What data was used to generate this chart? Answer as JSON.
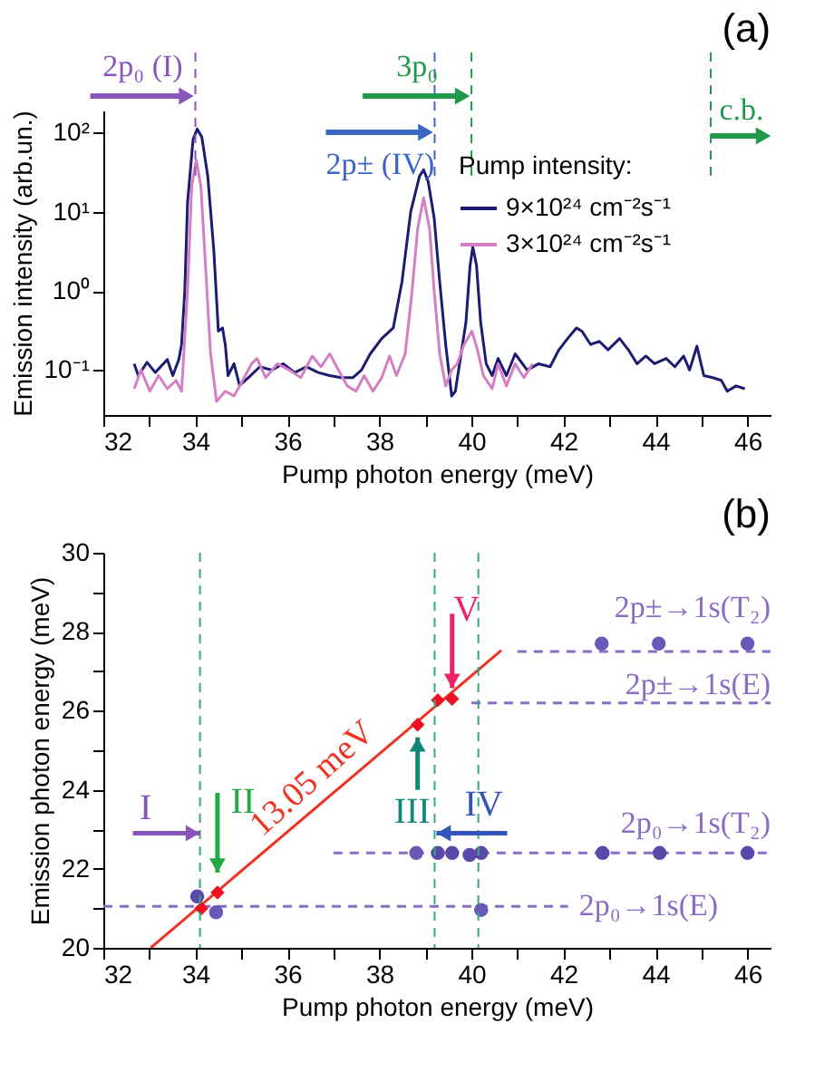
{
  "chart_data": [
    {
      "type": "line",
      "title": "(a)",
      "xlabel": "Pump photon energy (meV)",
      "ylabel": "Emission intensity (arb.un.)",
      "legend_title": "Pump intensity:",
      "legend": "right",
      "log": "y",
      "grid": false,
      "xlim": [
        32,
        46.5
      ],
      "xticks": [
        32,
        {
          "value": 33,
          "label": null
        },
        34,
        {
          "value": 35,
          "label": null
        },
        36,
        {
          "value": 37,
          "label": null
        },
        38,
        {
          "value": 39,
          "label": null
        },
        40,
        {
          "value": 41,
          "label": null
        },
        42,
        {
          "value": 43,
          "label": null
        },
        44,
        {
          "value": 45,
          "label": null
        },
        46
      ],
      "ylim": [
        0.027,
        190
      ],
      "yticks": [
        {
          "value": 0.1,
          "label": "10⁻¹"
        },
        {
          "value": 1,
          "label": "10⁰"
        },
        {
          "value": 10,
          "label": "10¹"
        },
        {
          "value": 100,
          "label": "10²"
        }
      ],
      "ref_lines": [
        {
          "axis": "x",
          "value": 34.0,
          "label": "2p₀ (I)",
          "color": "#8855bb",
          "line_style": "dashed"
        },
        {
          "axis": "x",
          "value": 39.2,
          "label": "2p± (IV)",
          "color": "#3a66c4",
          "line_style": "dashed"
        },
        {
          "axis": "x",
          "value": 40.0,
          "label": "3p₀",
          "color": "#22994a",
          "line_style": "dashed"
        },
        {
          "axis": "x",
          "value": 45.2,
          "label": "c.b.",
          "color": "#22994a",
          "line_style": "dashed"
        }
      ],
      "series": [
        {
          "name": "9×10²⁴ cm⁻²s⁻¹",
          "color": "#1c1c72",
          "x": [
            32.67,
            32.76,
            32.95,
            33.13,
            33.39,
            33.51,
            33.64,
            33.7,
            33.77,
            33.83,
            33.95,
            34.04,
            34.14,
            34.27,
            34.4,
            34.5,
            34.59,
            34.65,
            34.71,
            34.84,
            34.96,
            35.15,
            35.4,
            35.66,
            35.91,
            36.16,
            36.41,
            36.67,
            36.92,
            37.17,
            37.42,
            37.61,
            37.8,
            38.05,
            38.3,
            38.49,
            38.68,
            38.87,
            38.96,
            39.06,
            39.19,
            39.31,
            39.44,
            39.57,
            39.65,
            39.76,
            39.88,
            39.97,
            40.03,
            40.11,
            40.2,
            40.32,
            40.45,
            40.58,
            40.76,
            40.95,
            41.21,
            41.46,
            41.71,
            41.9,
            42.09,
            42.28,
            42.4,
            42.59,
            42.78,
            42.97,
            43.22,
            43.41,
            43.6,
            43.79,
            43.98,
            44.23,
            44.42,
            44.61,
            44.74,
            44.9,
            45.05,
            45.24,
            45.43,
            45.56,
            45.75,
            45.94
          ],
          "values": [
            0.12,
            0.085,
            0.125,
            0.093,
            0.136,
            0.085,
            0.136,
            0.21,
            1.0,
            13,
            82,
            111,
            88,
            28,
            3.3,
            0.31,
            0.34,
            0.21,
            0.085,
            0.12,
            0.064,
            0.08,
            0.11,
            0.1,
            0.12,
            0.093,
            0.11,
            0.093,
            0.085,
            0.08,
            0.08,
            0.1,
            0.16,
            0.25,
            0.34,
            1.3,
            10,
            28,
            34,
            24,
            8.3,
            1.3,
            0.21,
            0.047,
            0.054,
            0.14,
            0.4,
            2.1,
            3.6,
            2.1,
            0.4,
            0.12,
            0.085,
            0.14,
            0.085,
            0.16,
            0.1,
            0.12,
            0.11,
            0.18,
            0.25,
            0.34,
            0.31,
            0.21,
            0.23,
            0.18,
            0.25,
            0.18,
            0.12,
            0.15,
            0.12,
            0.14,
            0.11,
            0.15,
            0.1,
            0.2,
            0.085,
            0.08,
            0.074,
            0.054,
            0.063,
            0.058
          ]
        },
        {
          "name": "3×10²⁴ cm⁻²s⁻¹",
          "color": "#d47fc4",
          "x": [
            32.67,
            32.82,
            33.01,
            33.2,
            33.39,
            33.58,
            33.7,
            33.83,
            33.92,
            34.02,
            34.12,
            34.22,
            34.33,
            34.46,
            34.65,
            34.84,
            35.03,
            35.22,
            35.34,
            35.53,
            35.78,
            36.04,
            36.29,
            36.54,
            36.73,
            36.92,
            37.11,
            37.3,
            37.49,
            37.67,
            37.86,
            38.05,
            38.22,
            38.37,
            38.56,
            38.71,
            38.83,
            38.96,
            39.09,
            39.19,
            39.31,
            39.44,
            39.57,
            39.69,
            39.84,
            40.01,
            40.13,
            40.26,
            40.45,
            40.58,
            40.76,
            40.95,
            41.14,
            41.33
          ],
          "values": [
            0.058,
            0.1,
            0.054,
            0.085,
            0.058,
            0.074,
            0.054,
            1.0,
            21,
            45,
            21,
            2.1,
            0.16,
            0.04,
            0.054,
            0.047,
            0.074,
            0.12,
            0.14,
            0.08,
            0.12,
            0.1,
            0.08,
            0.15,
            0.11,
            0.16,
            0.1,
            0.063,
            0.054,
            0.085,
            0.054,
            0.08,
            0.15,
            0.085,
            0.16,
            1.0,
            6.1,
            15,
            6.1,
            1.0,
            0.16,
            0.063,
            0.1,
            0.12,
            0.21,
            0.31,
            0.18,
            0.085,
            0.058,
            0.12,
            0.063,
            0.12,
            0.08,
            0.12
          ]
        }
      ]
    },
    {
      "type": "scatter",
      "title": "(b)",
      "xlabel": "Pump photon energy (meV)",
      "ylabel": "Emission photon energy (meV)",
      "legend": false,
      "grid": false,
      "xlim": [
        32,
        46.5
      ],
      "xticks": [
        32,
        {
          "value": 33,
          "label": null
        },
        34,
        {
          "value": 35,
          "label": null
        },
        36,
        {
          "value": 37,
          "label": null
        },
        38,
        {
          "value": 39,
          "label": null
        },
        40,
        {
          "value": 41,
          "label": null
        },
        42,
        {
          "value": 43,
          "label": null
        },
        44,
        {
          "value": 45,
          "label": null
        },
        46
      ],
      "ylim": [
        20,
        30
      ],
      "yticks": [
        20,
        {
          "value": 21,
          "label": null
        },
        22,
        {
          "value": 23,
          "label": null
        },
        24,
        {
          "value": 25,
          "label": null
        },
        26,
        {
          "value": 27,
          "label": null
        },
        28,
        {
          "value": 29,
          "label": null
        },
        30
      ],
      "ref_lines": [
        {
          "axis": "x",
          "value": 34.1,
          "color": "#33aa77",
          "line_style": "dashed"
        },
        {
          "axis": "x",
          "value": 39.2,
          "color": "#33aa77",
          "line_style": "dashed"
        },
        {
          "axis": "x",
          "value": 40.15,
          "color": "#33aa77",
          "line_style": "dashed"
        }
      ],
      "annotations": [
        {
          "text": "I",
          "x": 34.1,
          "y": 22.9
        },
        {
          "text": "II",
          "x": 34.48,
          "y": 21.4
        },
        {
          "text": "III",
          "x": 38.83,
          "y": 25.65
        },
        {
          "text": "IV",
          "x": 39.24,
          "y": 22.9
        },
        {
          "text": "V",
          "x": 39.58,
          "y": 26.3
        },
        {
          "text": "13.05 meV",
          "x": 36.9,
          "y": 23.82
        }
      ],
      "series": [
        {
          "type": "line",
          "color": "#ee3322",
          "x": [
            33.03,
            40.65
          ],
          "values": [
            20,
            27.53
          ]
        },
        {
          "type": "line",
          "name": "2p±→1s(T₂)",
          "color": "#8a6cc4",
          "line_style": "dashed",
          "x": [
            41.0,
            46.5
          ],
          "values": [
            27.5,
            27.5
          ]
        },
        {
          "type": "line",
          "name": "2p±→1s(E)",
          "color": "#8a6cc4",
          "line_style": "dashed",
          "x": [
            40.0,
            46.5
          ],
          "values": [
            26.2,
            26.2
          ]
        },
        {
          "type": "line",
          "name": "2p₀→1s(T₂)",
          "color": "#8a6cc4",
          "line_style": "dashed",
          "x": [
            37.0,
            46.5
          ],
          "values": [
            22.4,
            22.4
          ]
        },
        {
          "type": "line",
          "name": "2p₀→1s(E)",
          "color": "#8a6cc4",
          "line_style": "dashed",
          "x": [
            32.0,
            42.1
          ],
          "values": [
            21.05,
            21.05
          ]
        },
        {
          "type": "scatter",
          "marker": "circle",
          "color": "#5a48aa",
          "x": [
            34.04,
            39.27,
            39.58,
            39.96,
            40.21,
            42.85,
            44.09,
            46.0
          ],
          "values": [
            21.3,
            22.4,
            22.4,
            22.35,
            22.4,
            22.4,
            22.4,
            22.4
          ]
        },
        {
          "type": "scatter",
          "marker": "circle",
          "color": "#6a58b8",
          "x": [
            34.45,
            38.8,
            40.21,
            42.83,
            44.07,
            46.0
          ],
          "values": [
            20.9,
            22.4,
            20.96,
            27.7,
            27.7,
            27.7
          ]
        },
        {
          "type": "scatter",
          "marker": "diamond",
          "color": "#ee1122",
          "x": [
            34.13,
            34.48,
            38.83,
            39.27,
            39.58
          ],
          "values": [
            21.0,
            21.4,
            25.65,
            26.27,
            26.3
          ]
        }
      ]
    }
  ]
}
